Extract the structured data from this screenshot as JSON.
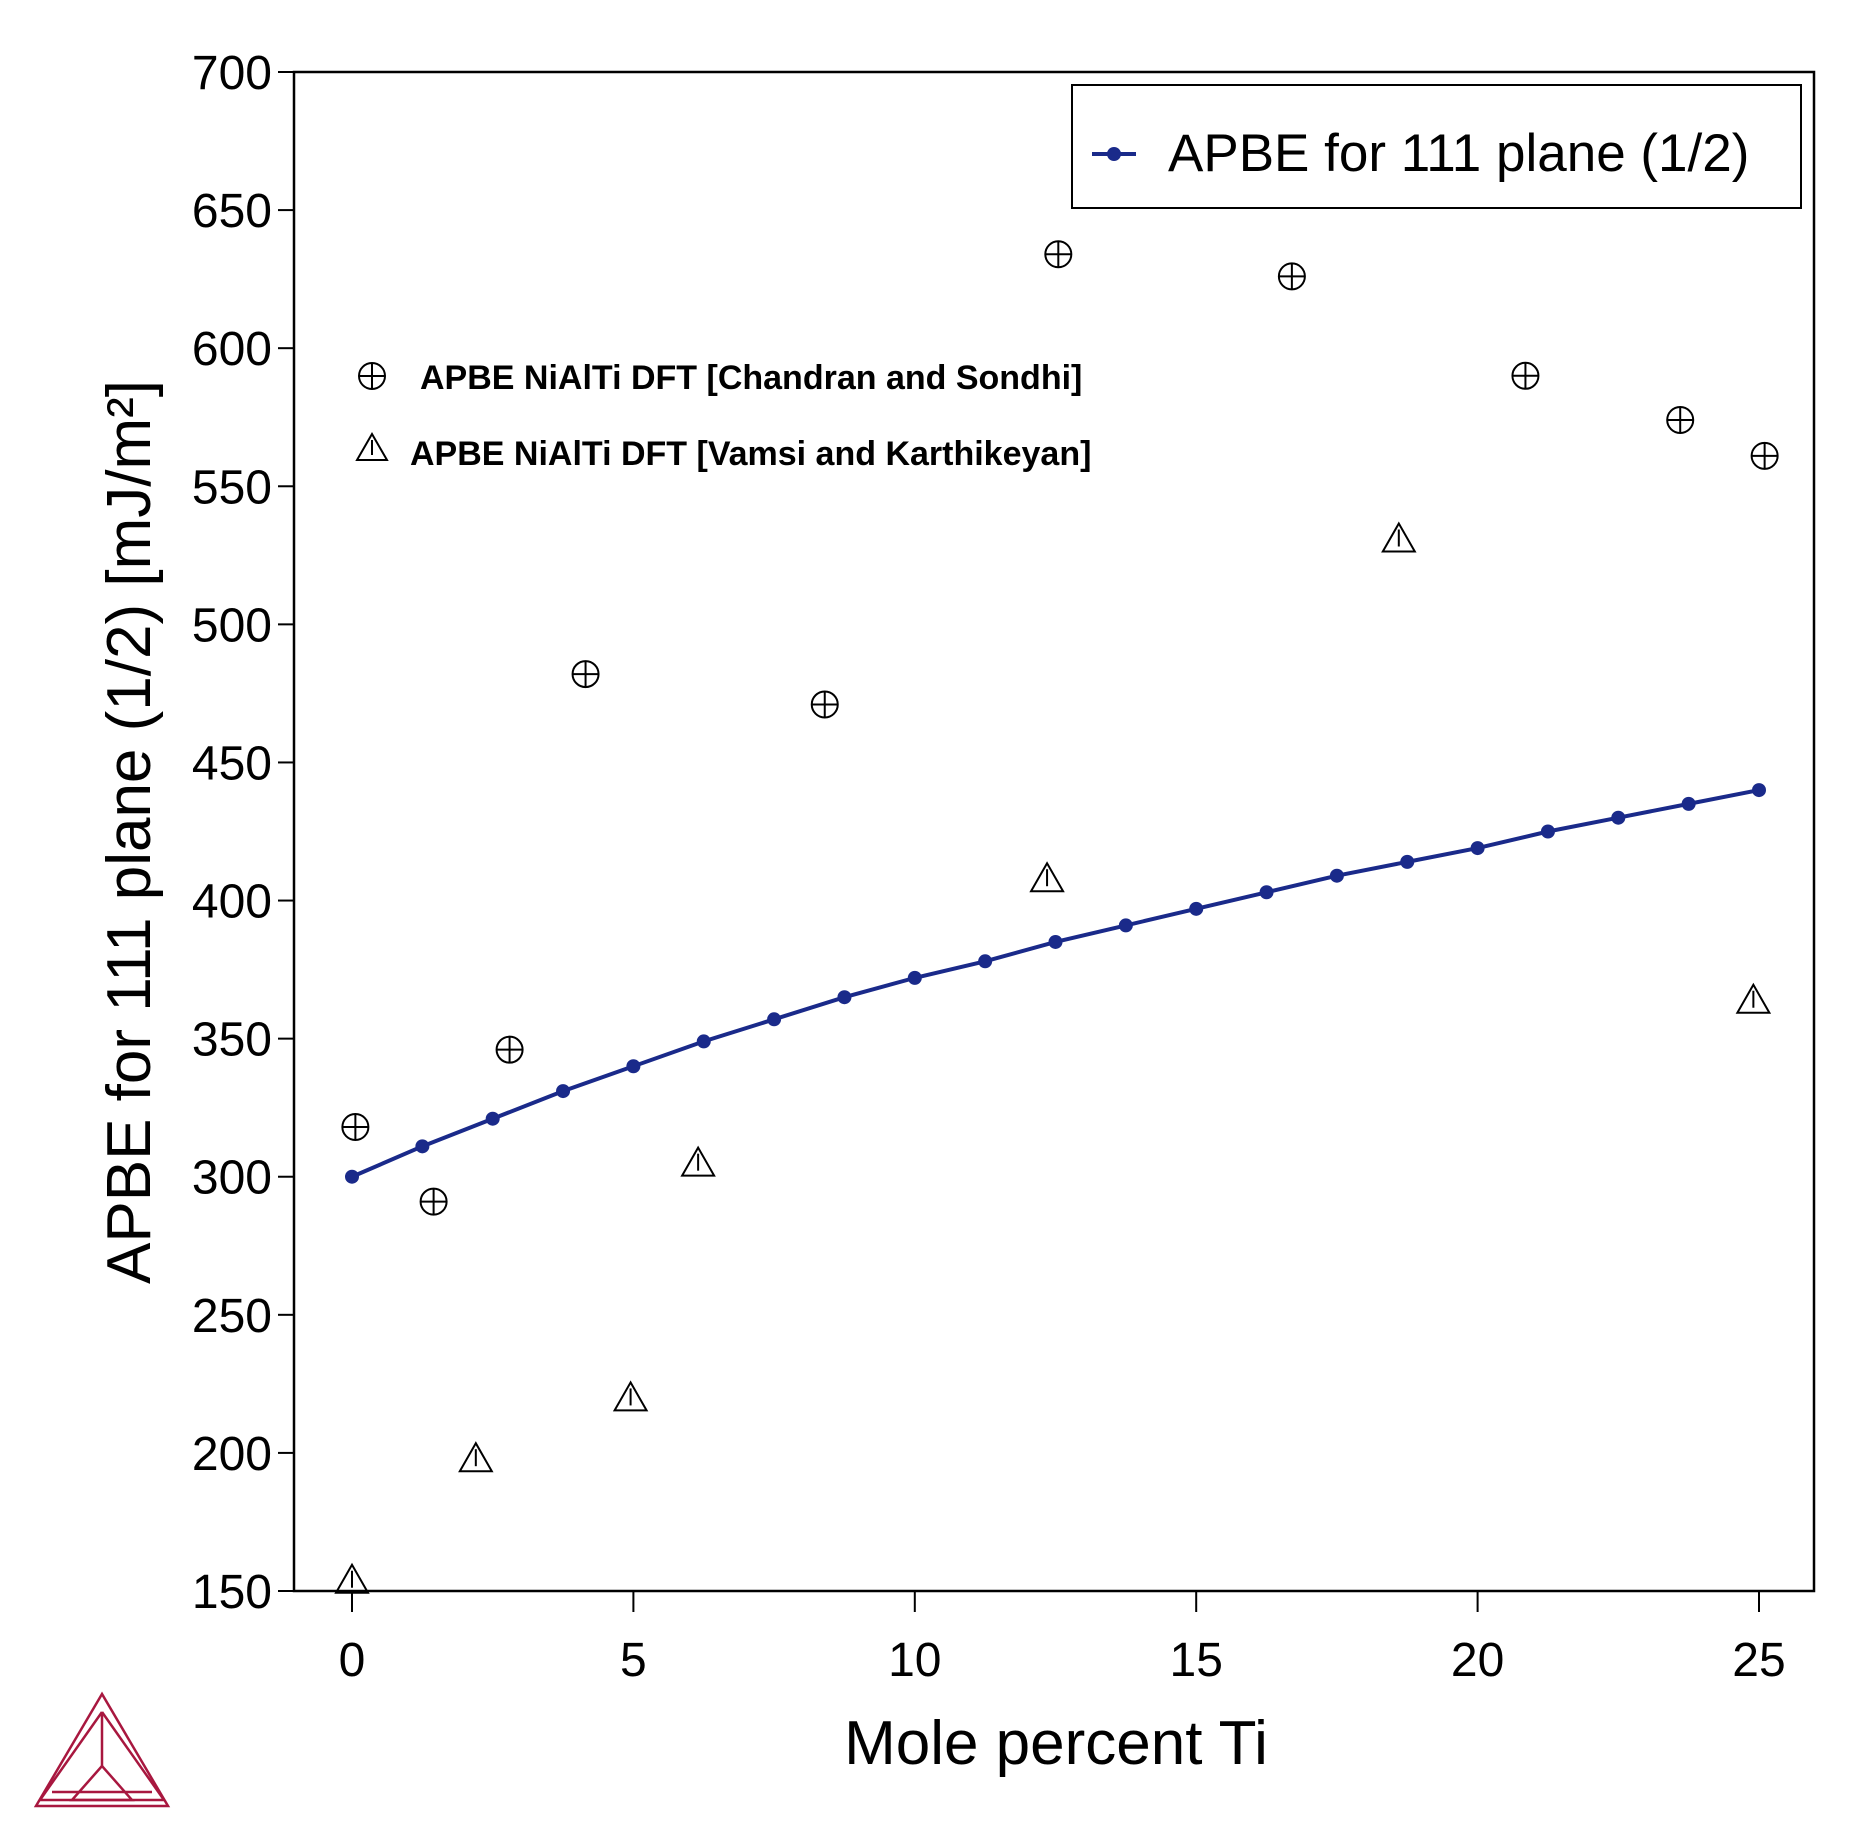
{
  "chart_data": {
    "type": "line",
    "xlabel": "Mole percent Ti",
    "ylabel": "APBE for 111 plane (1/2) [mJ/m²]",
    "xlim": [
      -1,
      26
    ],
    "ylim": [
      150,
      700
    ],
    "xticks": [
      0,
      5,
      10,
      15,
      20,
      25
    ],
    "yticks": [
      150,
      200,
      250,
      300,
      350,
      400,
      450,
      500,
      550,
      600,
      650,
      700
    ],
    "grid": false,
    "legend_position": "top-right",
    "series": [
      {
        "name": "APBE for 111 plane (1/2)",
        "kind": "line-with-markers",
        "color": "#1a2a8a",
        "x": [
          0,
          1.25,
          2.5,
          3.75,
          5,
          6.25,
          7.5,
          8.75,
          10,
          11.25,
          12.5,
          13.75,
          15,
          16.25,
          17.5,
          18.75,
          20,
          21.25,
          22.5,
          23.75,
          25
        ],
        "y": [
          300,
          311,
          321,
          331,
          340,
          349,
          357,
          365,
          372,
          378,
          385,
          391,
          397,
          403,
          409,
          414,
          419,
          425,
          430,
          435,
          440
        ]
      },
      {
        "name": "APBE NiAlTi DFT [Chandran and Sondhi]",
        "kind": "scatter",
        "marker": "circle-plus",
        "color": "#000000",
        "x": [
          0.06,
          1.45,
          2.8,
          4.15,
          8.4,
          12.55,
          16.7,
          20.85,
          23.6,
          25.1
        ],
        "y": [
          318,
          291,
          346,
          482,
          471,
          634,
          626,
          590,
          574,
          561
        ]
      },
      {
        "name": "APBE NiAlTi DFT [Vamsi and Karthikeyan]",
        "kind": "scatter",
        "marker": "triangle",
        "color": "#000000",
        "x": [
          0,
          2.2,
          4.95,
          6.15,
          12.35,
          18.6,
          24.9
        ],
        "y": [
          153,
          197,
          219,
          304,
          407,
          530,
          363
        ]
      }
    ]
  },
  "logo": {
    "name": "thermo-calc-logo-icon",
    "color": "#a8173f"
  }
}
